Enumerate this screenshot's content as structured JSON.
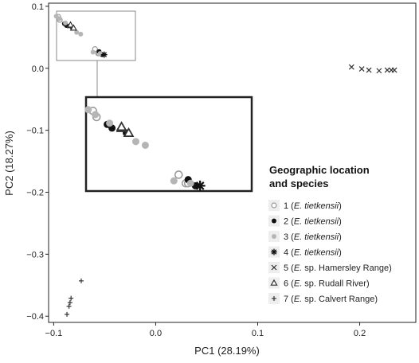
{
  "chart_data": {
    "type": "scatter",
    "xlabel": "PC1 (28.19%)",
    "ylabel": "PC2 (18.27%)",
    "xlim": [
      -0.105,
      0.255
    ],
    "ylim": [
      -0.41,
      0.105
    ],
    "x_ticks": [
      -0.1,
      0.0,
      0.1,
      0.2
    ],
    "x_tick_labels": [
      "−0.1",
      "0.0",
      "0.1",
      "0.2"
    ],
    "y_ticks": [
      0.1,
      0.0,
      -0.1,
      -0.2,
      -0.3,
      -0.4
    ],
    "y_tick_labels": [
      "0.1",
      "0.0",
      "−0.1",
      "−0.2",
      "−0.3",
      "−0.4"
    ],
    "legend": {
      "title_line1": "Geographic location",
      "title_line2": "and species",
      "placement": "right"
    },
    "series": [
      {
        "name": "1",
        "label_prefix": "1 (",
        "label_species": "E. tietkensii",
        "label_suffix": ")",
        "marker": "open-circle",
        "color": "#9a9a9a",
        "points": [
          [
            -0.0955,
            0.083
          ],
          [
            -0.094,
            0.078
          ],
          [
            -0.0595,
            0.031
          ],
          [
            -0.0565,
            0.024
          ],
          [
            -0.0555,
            0.024
          ]
        ]
      },
      {
        "name": "2",
        "label_prefix": "2 (",
        "label_species": "E. tietkensii",
        "label_suffix": ")",
        "marker": "filled-circle",
        "color": "#111111",
        "points": [
          [
            -0.0895,
            0.072
          ],
          [
            -0.0875,
            0.069
          ],
          [
            -0.0815,
            0.065
          ],
          [
            -0.0555,
            0.027
          ],
          [
            -0.0525,
            0.022
          ]
        ]
      },
      {
        "name": "3",
        "label_prefix": "3 (",
        "label_species": "E. tietkensii",
        "label_suffix": ")",
        "marker": "grey-circle",
        "color": "#b5b5b5",
        "points": [
          [
            -0.0975,
            0.084
          ],
          [
            -0.0945,
            0.08
          ],
          [
            -0.0885,
            0.073
          ],
          [
            -0.0775,
            0.058
          ],
          [
            -0.0735,
            0.055
          ],
          [
            -0.0615,
            0.026
          ],
          [
            -0.0545,
            0.024
          ]
        ]
      },
      {
        "name": "4",
        "label_prefix": "4 (",
        "label_species": "E. tietkensii",
        "label_suffix": ")",
        "marker": "asterisk",
        "color": "#111111",
        "points": [
          [
            -0.0505,
            0.022
          ]
        ]
      },
      {
        "name": "5",
        "label_prefix": "5 (",
        "label_species": "E.",
        "label_suffix": " sp. Hamersley Range)",
        "marker": "cross",
        "color": "#333333",
        "points": [
          [
            0.192,
            0.002
          ],
          [
            0.202,
            -0.001
          ],
          [
            0.209,
            -0.003
          ],
          [
            0.219,
            -0.004
          ],
          [
            0.227,
            -0.003
          ],
          [
            0.231,
            -0.003
          ],
          [
            0.234,
            -0.003
          ]
        ]
      },
      {
        "name": "6",
        "label_prefix": "6 (",
        "label_species": "E.",
        "label_suffix": " sp. Rudall River)",
        "marker": "open-triangle",
        "color": "#333333",
        "points": [
          [
            -0.0835,
            0.069
          ],
          [
            -0.0835,
            0.07
          ],
          [
            -0.0805,
            0.065
          ]
        ]
      },
      {
        "name": "7",
        "label_prefix": "7 (",
        "label_species": "E.",
        "label_suffix": " sp. Calvert Range)",
        "marker": "plus",
        "color": "#333333",
        "points": [
          [
            -0.073,
            -0.343
          ],
          [
            -0.083,
            -0.371
          ],
          [
            -0.084,
            -0.378
          ],
          [
            -0.085,
            -0.384
          ],
          [
            -0.087,
            -0.397
          ]
        ]
      }
    ],
    "inset": {
      "source_xlim": [
        -0.1,
        -0.04
      ],
      "source_ylim": [
        0.0152,
        0.094
      ],
      "show_label": false
    },
    "zoom_box": {
      "xlim": [
        -0.072,
        0.068
      ],
      "ylim": [
        -0.203,
        -0.047
      ]
    }
  }
}
